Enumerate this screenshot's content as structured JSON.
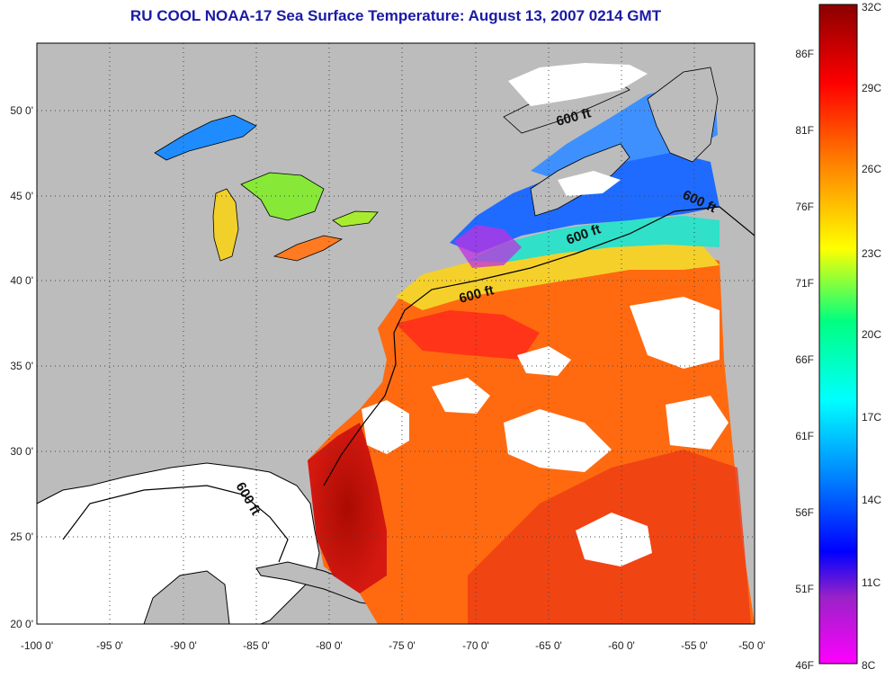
{
  "title": "RU COOL  NOAA-17  Sea Surface Temperature:  August 13, 2007 0214 GMT",
  "axes": {
    "x_ticks": [
      "-100 0'",
      "-95 0'",
      "-90 0'",
      "-85 0'",
      "-80 0'",
      "-75 0'",
      "-70 0'",
      "-65 0'",
      "-60 0'",
      "-55 0'",
      "-50 0'"
    ],
    "y_ticks": [
      "50 0'",
      "45 0'",
      "40 0'",
      "35 0'",
      "30 0'",
      "25 0'",
      "20 0'"
    ]
  },
  "contour_labels": [
    "600 ft",
    "600 ft",
    "600 ft",
    "600 ft",
    "600 ft"
  ],
  "colorbar": {
    "fahrenheit": [
      "86F",
      "81F",
      "76F",
      "71F",
      "66F",
      "61F",
      "56F",
      "51F",
      "46F"
    ],
    "celsius": [
      "32C",
      "29C",
      "26C",
      "23C",
      "20C",
      "17C",
      "14C",
      "11C",
      "8C"
    ],
    "colors": [
      "#ff00ff",
      "#9a22c8",
      "#0000ff",
      "#0080ff",
      "#00ffff",
      "#00ff80",
      "#ffff00",
      "#ff8000",
      "#ff0000",
      "#8b0000"
    ]
  },
  "colors": {
    "land": "#bcbcbc",
    "cloud": "#ffffff",
    "grid": "#444444",
    "title": "#1a1aa6"
  }
}
